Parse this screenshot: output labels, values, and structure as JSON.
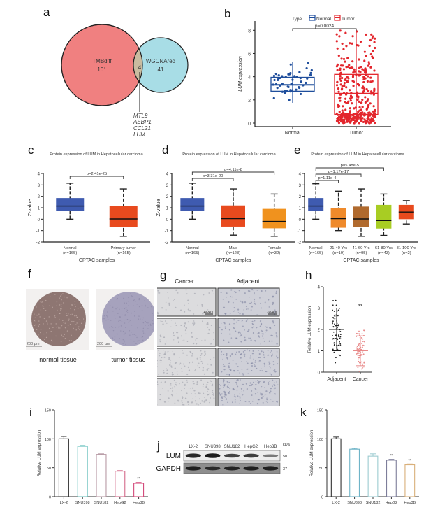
{
  "panels": {
    "a": {
      "label": "a"
    },
    "b": {
      "label": "b"
    },
    "c": {
      "label": "c"
    },
    "d": {
      "label": "d"
    },
    "e": {
      "label": "e"
    },
    "f": {
      "label": "f"
    },
    "g": {
      "label": "g"
    },
    "h": {
      "label": "h"
    },
    "i": {
      "label": "i"
    },
    "j": {
      "label": "j"
    },
    "k": {
      "label": "k"
    }
  },
  "chart_data": [
    {
      "id": "a",
      "type": "venn",
      "sets": [
        {
          "name": "TMBdiff",
          "unique_count": 101,
          "color": "#f08080"
        },
        {
          "name": "WGCNAred",
          "unique_count": 41,
          "color": "#a8dde6"
        }
      ],
      "intersection": {
        "count": 4,
        "color": "#c9bca0",
        "genes": [
          "MTL9",
          "AEBP1",
          "CCL21",
          "LUM"
        ]
      }
    },
    {
      "id": "b",
      "type": "box-jitter",
      "ylabel": "LUM expression",
      "ylim": [
        0,
        8.5
      ],
      "yticks": [
        0,
        2,
        4,
        6,
        8
      ],
      "legend_title": "Type",
      "legend_position": "top",
      "categories": [
        "Normal",
        "Tumor"
      ],
      "series": [
        {
          "name": "Normal",
          "color": "#1f4e9c",
          "q1": 2.75,
          "median": 3.3,
          "q3": 3.95,
          "whisker_low": 1.75,
          "whisker_high": 5.3,
          "n_points": 50
        },
        {
          "name": "Tumor",
          "color": "#e3262d",
          "q1": 0.75,
          "median": 2.55,
          "q3": 4.2,
          "whisker_low": 0,
          "whisker_high": 8.1,
          "n_points": 370
        }
      ],
      "annotation": "p=0.0024"
    },
    {
      "id": "c",
      "type": "box",
      "title": "Protein expression of LUM in Hepatocellular carcioma",
      "ylabel": "Z-value",
      "xlabel": "CPTAC samples",
      "ylim": [
        -2,
        4
      ],
      "yticks": [
        -2,
        -1,
        0,
        1,
        2,
        3,
        4
      ],
      "categories": [
        "Normal",
        "Primary tumor"
      ],
      "ns": [
        "(n=165)",
        "(n=165)"
      ],
      "series": [
        {
          "name": "Normal",
          "color": "#3f5bb0",
          "min": 0,
          "q1": 0.72,
          "median": 1.15,
          "q3": 1.85,
          "max": 3.15
        },
        {
          "name": "Primary tumor",
          "color": "#e84a1e",
          "min": -1.5,
          "q1": -0.7,
          "median": 0.02,
          "q3": 1.15,
          "max": 2.65
        }
      ],
      "comparisons": [
        {
          "from": 0,
          "to": 1,
          "label": "p=2.41e-25"
        }
      ]
    },
    {
      "id": "d",
      "type": "box",
      "title": "Protein expression of LUM in Hepatocellular carcioma",
      "ylabel": "Z-value",
      "xlabel": "CPTAC samples",
      "ylim": [
        -2,
        4
      ],
      "yticks": [
        -2,
        -1,
        0,
        1,
        2,
        3,
        4
      ],
      "categories": [
        "Normal",
        "Male",
        "Female"
      ],
      "ns": [
        "(n=165)",
        "(n=128)",
        "(n=32)"
      ],
      "series": [
        {
          "name": "Normal",
          "color": "#3f5bb0",
          "min": 0,
          "q1": 0.72,
          "median": 1.15,
          "q3": 1.85,
          "max": 3.15
        },
        {
          "name": "Male",
          "color": "#e84a1e",
          "min": -1.4,
          "q1": -0.65,
          "median": 0.05,
          "q3": 1.2,
          "max": 2.65
        },
        {
          "name": "Female",
          "color": "#f0921e",
          "min": -1.5,
          "q1": -0.8,
          "median": -0.2,
          "q3": 0.9,
          "max": 2.2
        }
      ],
      "comparisons": [
        {
          "from": 0,
          "to": 1,
          "label": "p=3.31e-20"
        },
        {
          "from": 0,
          "to": 2,
          "label": "p=4.11e-8"
        }
      ]
    },
    {
      "id": "e",
      "type": "box",
      "title": "Protein expression of LUM in Hepatocellular carcioma",
      "ylabel": "Z-value",
      "xlabel": "CPTAC samples",
      "ylim": [
        -2,
        4
      ],
      "yticks": [
        -2,
        -1,
        0,
        1,
        2,
        3,
        4
      ],
      "categories": [
        "Normal",
        "21-40 Yrs",
        "41-60 Yrs",
        "61-80 Yrs",
        "81-100 Yrs"
      ],
      "ns": [
        "(n=165)",
        "(n=19)",
        "(n=95)",
        "(n=43)",
        "(n=2)"
      ],
      "series": [
        {
          "name": "Normal",
          "color": "#3f5bb0",
          "min": 0,
          "q1": 0.72,
          "median": 1.15,
          "q3": 1.85,
          "max": 3.1
        },
        {
          "name": "21-40 Yrs",
          "color": "#ef8a2b",
          "min": -1.0,
          "q1": -0.75,
          "median": 0.05,
          "q3": 0.95,
          "max": 2.45
        },
        {
          "name": "41-60 Yrs",
          "color": "#b06a2e",
          "min": -1.5,
          "q1": -0.68,
          "median": 0.02,
          "q3": 1.1,
          "max": 2.65
        },
        {
          "name": "61-80 Yrs",
          "color": "#a8cd23",
          "min": -1.42,
          "q1": -0.82,
          "median": -0.12,
          "q3": 1.25,
          "max": 2.2
        },
        {
          "name": "81-100 Yrs",
          "color": "#e84a1e",
          "min": -0.42,
          "q1": 0,
          "median": 0.62,
          "q3": 1.25,
          "max": 1.62
        }
      ],
      "comparisons": [
        {
          "from": 0,
          "to": 1,
          "label": "p=1.11e-4"
        },
        {
          "from": 0,
          "to": 2,
          "label": "p=1.17e-17"
        },
        {
          "from": 0,
          "to": 3,
          "label": "p=5.48e-5"
        }
      ]
    },
    {
      "id": "f",
      "type": "image",
      "items": [
        {
          "caption": "normal tissue",
          "scale_bar": "200 µm",
          "color": "#8e7672"
        },
        {
          "caption": "tumor tissue",
          "scale_bar": "200 µm",
          "color": "#a6a2bd"
        }
      ]
    },
    {
      "id": "g",
      "type": "image-grid",
      "columns": [
        "Cancer",
        "Adjacent"
      ],
      "rows": 4,
      "scale_bar": "100µm"
    },
    {
      "id": "h",
      "type": "scatter-dot",
      "ylabel": "Relative LUM expression",
      "ylim": [
        0,
        4
      ],
      "yticks": [
        0,
        1,
        2,
        3,
        4
      ],
      "categories": [
        "Adjacent",
        "Cancer"
      ],
      "series": [
        {
          "name": "Adjacent",
          "color": "#222222",
          "mean": 2.0,
          "sd_low": 1.0,
          "sd_high": 3.0,
          "n_points": 75
        },
        {
          "name": "Cancer",
          "color": "#e88a8a",
          "mean": 1.0,
          "sd_low": 0.3,
          "sd_high": 1.7,
          "n_points": 75
        }
      ],
      "annotation": {
        "category": "Cancer",
        "label": "**",
        "y": 3.1
      }
    },
    {
      "id": "i",
      "type": "bar",
      "ylabel": "Relative LUM expression",
      "ylim": [
        0,
        150
      ],
      "yticks": [
        0,
        50,
        100,
        150
      ],
      "categories": [
        "LX-2",
        "SNU398",
        "SNU182",
        "HepG2",
        "Hep3B"
      ],
      "values": [
        100,
        87,
        73,
        44,
        23
      ],
      "errors": [
        4,
        1.5,
        1,
        1,
        1.5
      ],
      "colors": [
        "#333333",
        "#6fc4c0",
        "#b79aa5",
        "#d46a8a",
        "#d4497a"
      ],
      "annotations": [
        "",
        "",
        "",
        "",
        "**"
      ]
    },
    {
      "id": "j",
      "type": "western-blot",
      "lanes": [
        "LX-2",
        "SNU398",
        "SNU182",
        "HepG2",
        "Hep3B"
      ],
      "unit": "kDa",
      "rows": [
        {
          "name": "LUM",
          "kda": "50",
          "intensities": [
            0.9,
            1.0,
            0.7,
            0.75,
            0.3
          ]
        },
        {
          "name": "GAPDH",
          "kda": "37",
          "intensities": [
            0.9,
            0.75,
            0.85,
            0.9,
            0.9
          ]
        }
      ]
    },
    {
      "id": "k",
      "type": "bar",
      "ylabel": "Relative LUM expression",
      "ylim": [
        0,
        150
      ],
      "yticks": [
        0,
        50,
        100,
        150
      ],
      "categories": [
        "LX-2",
        "SNU398",
        "SNU182",
        "HepG2",
        "Hep3B"
      ],
      "values": [
        100,
        82,
        70,
        63,
        55
      ],
      "errors": [
        3,
        1.5,
        4,
        1.5,
        1.5
      ],
      "colors": [
        "#333333",
        "#6fb4c8",
        "#9ccbd0",
        "#7d7d9a",
        "#d9b07a"
      ],
      "annotations": [
        "",
        "",
        "",
        "**",
        "**"
      ]
    }
  ]
}
